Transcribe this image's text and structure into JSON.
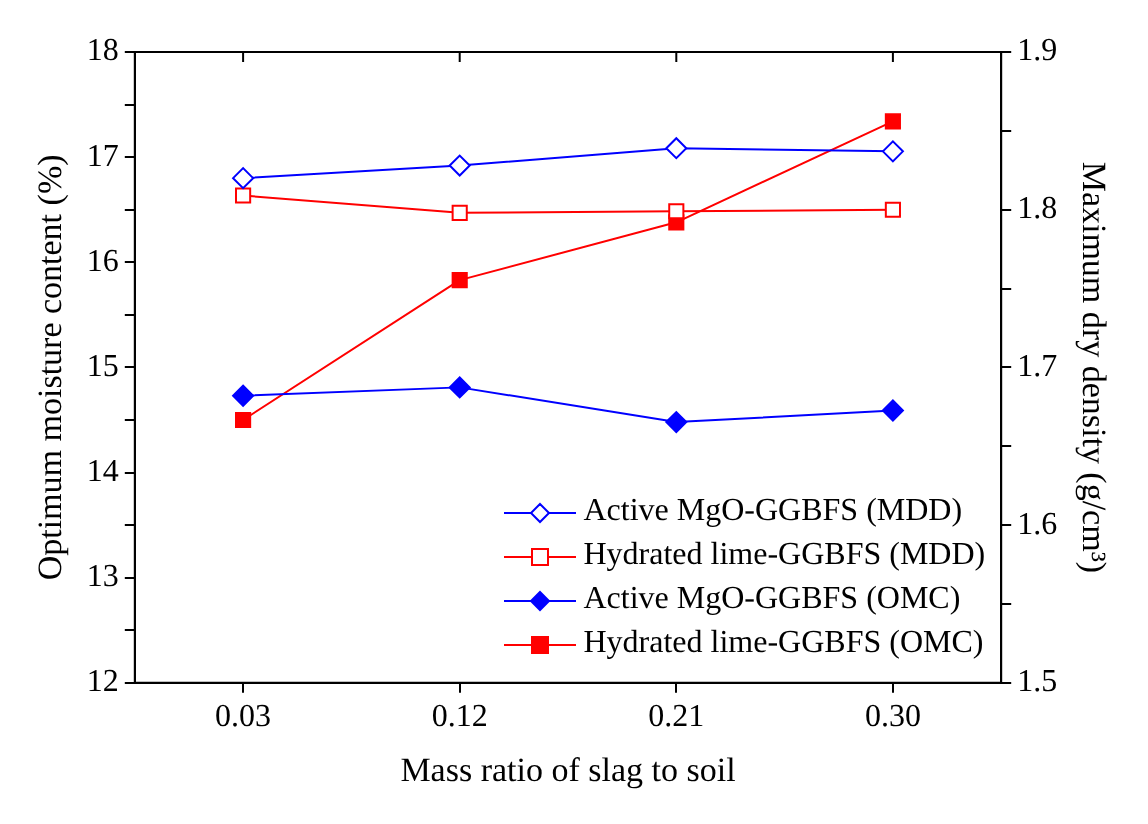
{
  "chart_data": {
    "type": "line",
    "xlabel": "Mass ratio of slag to soil",
    "ylabel": "Optimum moisture content (%)",
    "y2label": "Maximum dry density (g/cm³)",
    "categories": [
      "0.03",
      "0.12",
      "0.21",
      "0.30"
    ],
    "series": [
      {
        "name": "Active  MgO-GGBFS (MDD)",
        "color": "#0000ff",
        "marker": "diamond",
        "axis": "y2",
        "values": [
          1.82,
          1.828,
          1.839,
          1.837
        ]
      },
      {
        "name": "Hydrated lime-GGBFS (MDD)",
        "color": "#ff0000",
        "marker": "square",
        "axis": "y2",
        "values": [
          1.809,
          1.798,
          1.799,
          1.8
        ]
      },
      {
        "name": "Active MgO-GGBFS (OMC)",
        "color": "#0000ff",
        "marker": "diamond",
        "values": [
          14.73,
          14.81,
          14.48,
          14.59
        ]
      },
      {
        "name": "Hydrated lime-GGBFS (OMC)",
        "color": "#ff0000",
        "marker": "square",
        "values": [
          14.5,
          15.83,
          16.38,
          17.34
        ]
      }
    ],
    "ylim": [
      12,
      18
    ],
    "yticks": [
      12,
      {
        "value": 12.5,
        "label": null
      },
      13,
      {
        "value": 13.5,
        "label": null
      },
      14,
      {
        "value": 14.5,
        "label": null
      },
      15,
      {
        "value": 15.5,
        "label": null
      },
      16,
      {
        "value": 16.5,
        "label": null
      },
      17,
      {
        "value": 17.5,
        "label": null
      },
      18
    ],
    "y2lim": [
      1.5,
      1.9
    ],
    "y2ticks": [
      1.5,
      {
        "value": 1.55,
        "label": null
      },
      1.6,
      {
        "value": 1.65,
        "label": null
      },
      1.7,
      {
        "value": 1.75,
        "label": null
      },
      1.8,
      {
        "value": 1.85,
        "label": null
      },
      1.9
    ],
    "grid": false,
    "legend": "bottom right",
    "line_style": "solid"
  }
}
